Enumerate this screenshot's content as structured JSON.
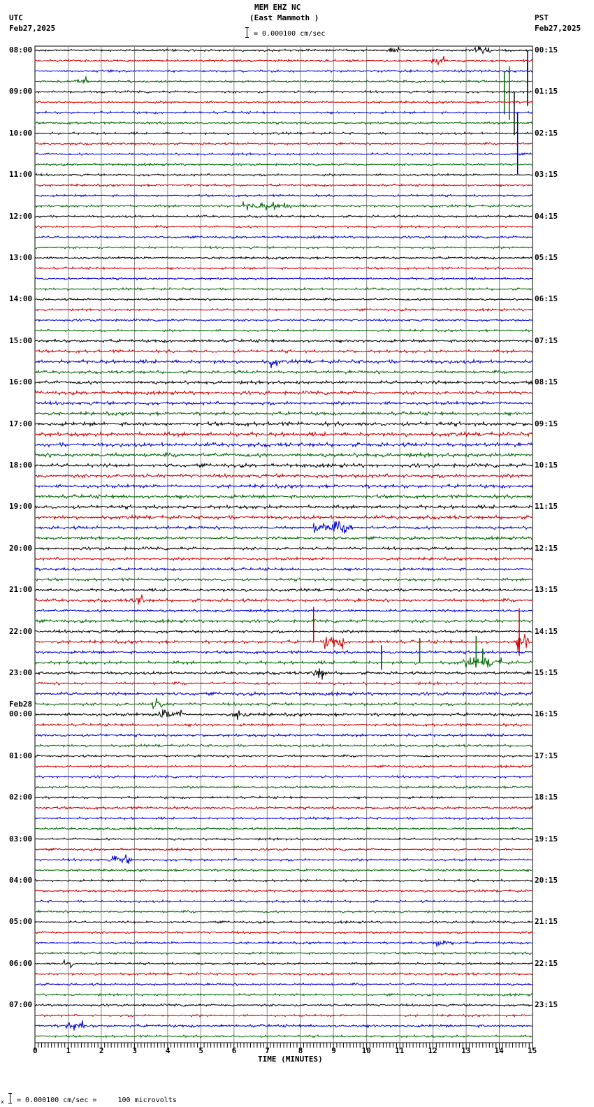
{
  "header": {
    "station": "MEM EHZ NC",
    "location": "(East Mammoth )",
    "left_tz": "UTC",
    "left_date": "Feb27,2025",
    "right_tz": "PST",
    "right_date": "Feb27,2025",
    "scale_text": "= 0.000100 cm/sec"
  },
  "footer": {
    "scale_text": "= 0.000100 cm/sec =     100 microvolts",
    "marker": "x"
  },
  "chart_data": {
    "type": "line",
    "title": "MEM EHZ NC (East Mammoth )",
    "xlabel": "TIME (MINUTES)",
    "ylabel": "",
    "x_ticks": [
      "0",
      "1",
      "2",
      "3",
      "4",
      "5",
      "6",
      "7",
      "8",
      "9",
      "10",
      "11",
      "12",
      "13",
      "14",
      "15"
    ],
    "xlim": [
      0,
      15
    ],
    "grid": true,
    "trace_colors": [
      "#000000",
      "#cc0000",
      "#0000cc",
      "#006600"
    ],
    "traces_per_hour": 4,
    "left_labels": [
      {
        "row": 0,
        "text": "08:00"
      },
      {
        "row": 4,
        "text": "09:00"
      },
      {
        "row": 8,
        "text": "10:00"
      },
      {
        "row": 12,
        "text": "11:00"
      },
      {
        "row": 16,
        "text": "12:00"
      },
      {
        "row": 20,
        "text": "13:00"
      },
      {
        "row": 24,
        "text": "14:00"
      },
      {
        "row": 28,
        "text": "15:00"
      },
      {
        "row": 32,
        "text": "16:00"
      },
      {
        "row": 36,
        "text": "17:00"
      },
      {
        "row": 40,
        "text": "18:00"
      },
      {
        "row": 44,
        "text": "19:00"
      },
      {
        "row": 48,
        "text": "20:00"
      },
      {
        "row": 52,
        "text": "21:00"
      },
      {
        "row": 56,
        "text": "22:00"
      },
      {
        "row": 60,
        "text": "23:00"
      },
      {
        "row": 64,
        "text": "00:00",
        "date": "Feb28"
      },
      {
        "row": 68,
        "text": "01:00"
      },
      {
        "row": 72,
        "text": "02:00"
      },
      {
        "row": 76,
        "text": "03:00"
      },
      {
        "row": 80,
        "text": "04:00"
      },
      {
        "row": 84,
        "text": "05:00"
      },
      {
        "row": 88,
        "text": "06:00"
      },
      {
        "row": 92,
        "text": "07:00"
      }
    ],
    "right_labels": [
      "00:15",
      "01:15",
      "02:15",
      "03:15",
      "04:15",
      "05:15",
      "06:15",
      "07:15",
      "08:15",
      "09:15",
      "10:15",
      "11:15",
      "12:15",
      "13:15",
      "14:15",
      "15:15",
      "16:15",
      "17:15",
      "18:15",
      "19:15",
      "20:15",
      "21:15",
      "22:15",
      "23:15"
    ],
    "row_count": 96,
    "noise_level_by_row": [
      1,
      1,
      1,
      1,
      1,
      1,
      1,
      1,
      1,
      1,
      1,
      1,
      1,
      1,
      1,
      1,
      1,
      1,
      1,
      1,
      1,
      1,
      1,
      1,
      1,
      1,
      1,
      1,
      1.3,
      1.3,
      1.6,
      1.3,
      1.5,
      1.5,
      1.5,
      1.5,
      1.8,
      1.8,
      1.8,
      1.8,
      1.6,
      1.6,
      1.6,
      1.6,
      1.6,
      1.6,
      1.4,
      1.3,
      1.3,
      1.3,
      1.2,
      1.2,
      1.2,
      1.4,
      1.2,
      1.3,
      1.3,
      1.4,
      1.3,
      1.4,
      1.3,
      1.2,
      1.4,
      1.3,
      1.4,
      1.2,
      1.2,
      1.1,
      1,
      1,
      1,
      1,
      1,
      1.2,
      1,
      1,
      1,
      1,
      1.1,
      1,
      1,
      1,
      1,
      1,
      1,
      1,
      1,
      1,
      1,
      1,
      1,
      1,
      1,
      1,
      1.2,
      1
    ],
    "events": [
      {
        "row": 2,
        "minute": 14.85,
        "amp_up": 30,
        "amp_down": 0
      },
      {
        "row": 3,
        "minute": 14.15,
        "amp_up": 15,
        "amp_down": 47
      },
      {
        "row": 3,
        "minute": 14.3,
        "amp_up": 22,
        "amp_down": 55
      },
      {
        "row": 4,
        "minute": 14.45,
        "amp_up": 0,
        "amp_down": 62
      },
      {
        "row": 4,
        "minute": 14.85,
        "amp_up": 42,
        "amp_down": 20
      },
      {
        "row": 6,
        "minute": 14.55,
        "amp_up": 0,
        "amp_down": 88
      },
      {
        "row": 57,
        "minute": 8.4,
        "amp_up": 50,
        "amp_down": 0
      },
      {
        "row": 57,
        "minute": 14.6,
        "amp_up": 48,
        "amp_down": 20
      },
      {
        "row": 58,
        "minute": 10.45,
        "amp_up": 10,
        "amp_down": 25
      },
      {
        "row": 59,
        "minute": 11.6,
        "amp_up": 35,
        "amp_down": 0
      },
      {
        "row": 59,
        "minute": 13.3,
        "amp_up": 38,
        "amp_down": 0
      },
      {
        "row": 59,
        "minute": 13.5,
        "amp_up": 20,
        "amp_down": 0
      }
    ],
    "bursts": [
      {
        "row": 0,
        "minute": 10.8,
        "width": 0.4,
        "amp": 4
      },
      {
        "row": 0,
        "minute": 13.5,
        "width": 0.5,
        "amp": 4
      },
      {
        "row": 1,
        "minute": 12.2,
        "width": 0.5,
        "amp": 5
      },
      {
        "row": 3,
        "minute": 1.4,
        "width": 0.4,
        "amp": 5
      },
      {
        "row": 15,
        "minute": 7.0,
        "width": 1.5,
        "amp": 4
      },
      {
        "row": 30,
        "minute": 7.2,
        "width": 0.3,
        "amp": 6
      },
      {
        "row": 46,
        "minute": 9.0,
        "width": 1.2,
        "amp": 6
      },
      {
        "row": 53,
        "minute": 3.1,
        "width": 0.4,
        "amp": 6
      },
      {
        "row": 57,
        "minute": 9.0,
        "width": 0.6,
        "amp": 7
      },
      {
        "row": 57,
        "minute": 14.7,
        "width": 0.4,
        "amp": 9
      },
      {
        "row": 59,
        "minute": 13.5,
        "width": 1.2,
        "amp": 5
      },
      {
        "row": 60,
        "minute": 8.6,
        "width": 0.4,
        "amp": 7
      },
      {
        "row": 63,
        "minute": 3.7,
        "width": 0.4,
        "amp": 6
      },
      {
        "row": 64,
        "minute": 4.1,
        "width": 0.8,
        "amp": 6
      },
      {
        "row": 64,
        "minute": 6.2,
        "width": 0.5,
        "amp": 5
      },
      {
        "row": 78,
        "minute": 2.6,
        "width": 0.6,
        "amp": 5
      },
      {
        "row": 86,
        "minute": 12.3,
        "width": 0.6,
        "amp": 4
      },
      {
        "row": 88,
        "minute": 1.0,
        "width": 0.3,
        "amp": 5
      },
      {
        "row": 94,
        "minute": 1.2,
        "width": 0.6,
        "amp": 5
      }
    ]
  }
}
